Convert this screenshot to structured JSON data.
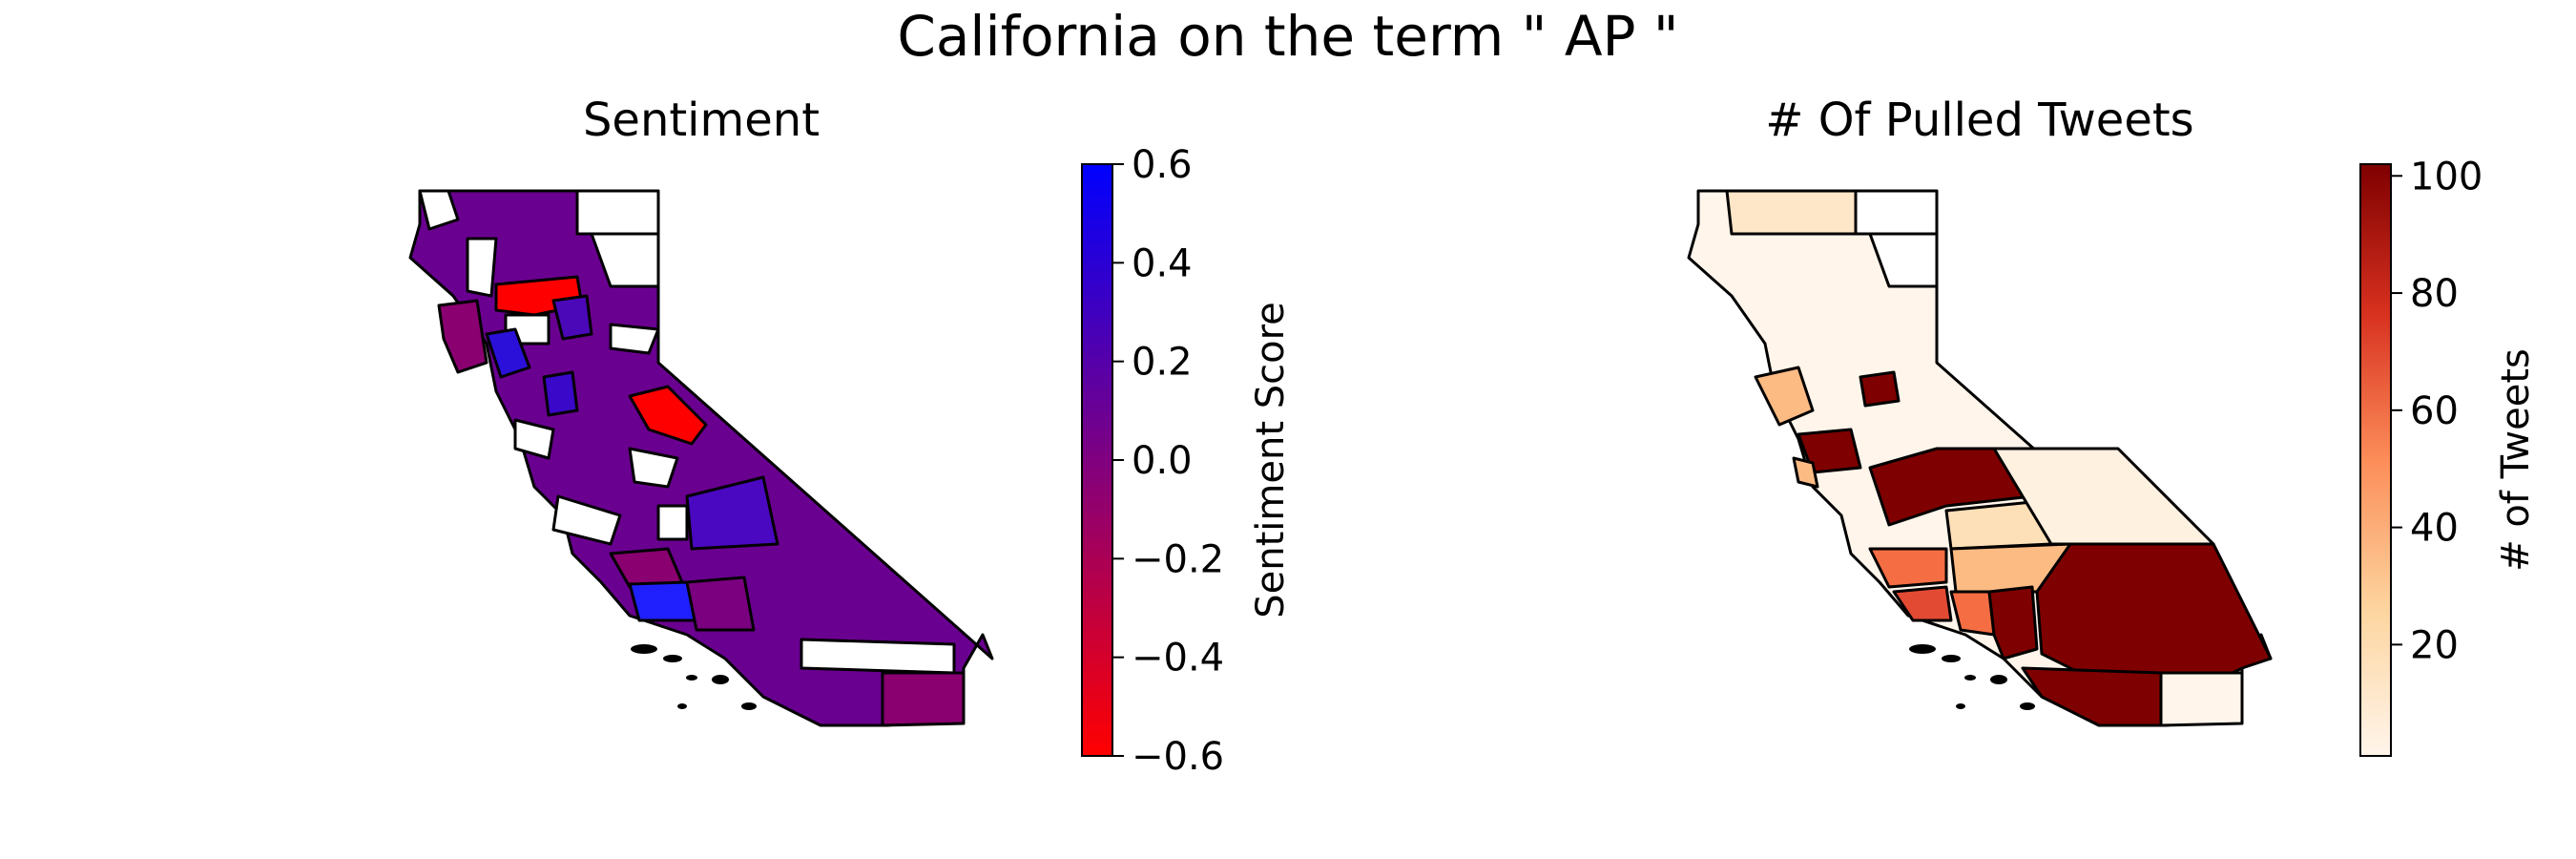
{
  "figure": {
    "title": "California on the term \" AP \""
  },
  "panels": [
    {
      "id": "sentiment",
      "title": "Sentiment",
      "colorbar": {
        "label": "Sentiment Score",
        "min": -0.6,
        "max": 0.6,
        "ticks": [
          "0.6",
          "0.4",
          "0.2",
          "0.0",
          "−0.2",
          "−0.4",
          "−0.6"
        ],
        "gradient": [
          "#ff0000",
          "#0000ff"
        ]
      }
    },
    {
      "id": "tweets",
      "title": "# Of Pulled Tweets",
      "colorbar": {
        "label": "# of Tweets",
        "min": 1,
        "max": 102,
        "ticks": [
          "100",
          "80",
          "60",
          "40",
          "20"
        ],
        "gradient": [
          "#fff5eb",
          "#fdd49e",
          "#fc8d59",
          "#d7301f",
          "#7f0000"
        ]
      }
    }
  ],
  "colors": {
    "no_data": "#ffffff",
    "outline": "#000000",
    "sentiment_fill": "#6a0090",
    "tweets_fill": "#fff1e0"
  }
}
